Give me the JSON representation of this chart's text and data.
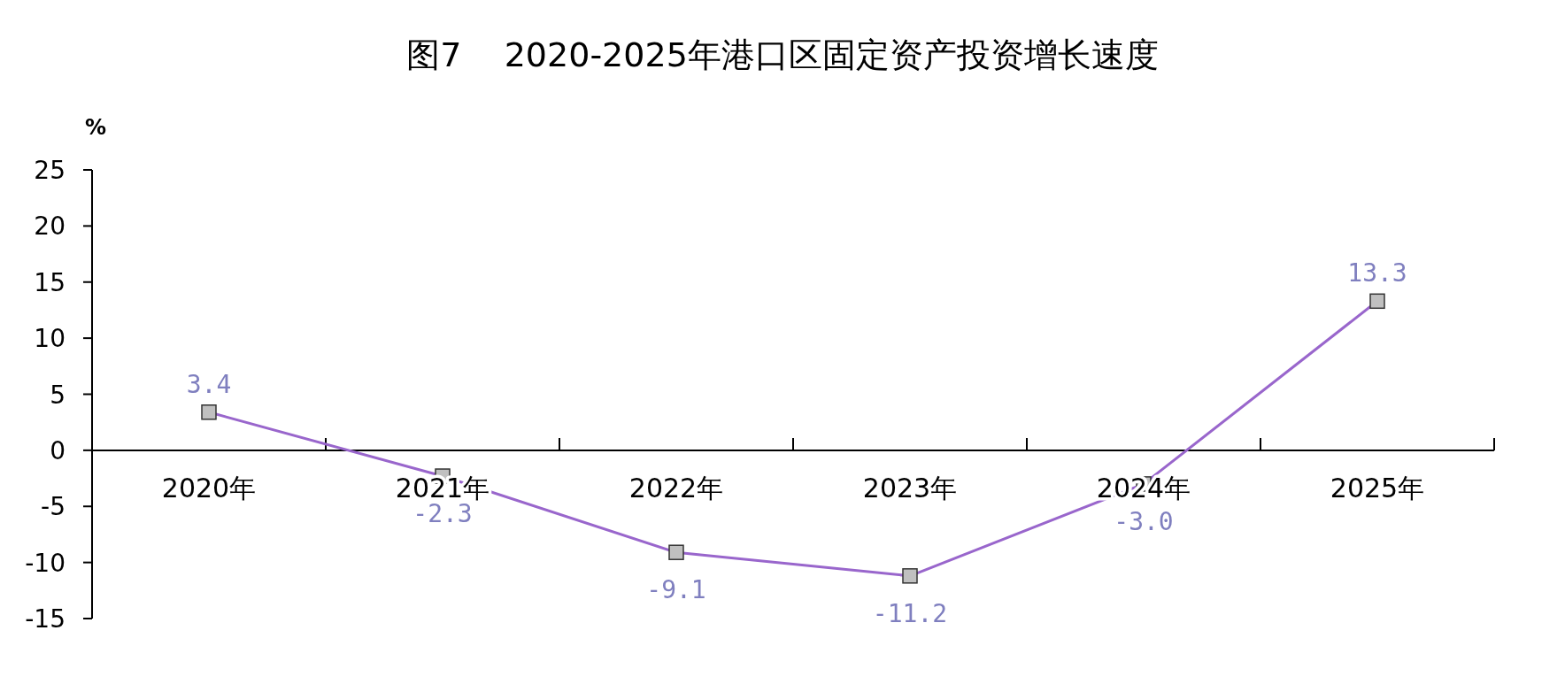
{
  "chart_data": {
    "type": "line",
    "title": "图7    2020-2025年港口区固定资产投资增长速度",
    "ylabel": "%",
    "categories": [
      "2020年",
      "2021年",
      "2022年",
      "2023年",
      "2024年",
      "2025年"
    ],
    "values": [
      3.4,
      -2.3,
      -9.1,
      -11.2,
      -3.0,
      13.3
    ],
    "value_labels": [
      "3.4",
      "-2.3",
      "-9.1",
      "-11.2",
      "-3.0",
      "13.3"
    ],
    "color": "#9966cc",
    "marker": "square",
    "ylim": [
      -15,
      25
    ],
    "yticks": [
      -15,
      -10,
      -5,
      0,
      5,
      10,
      15,
      20,
      25
    ]
  }
}
